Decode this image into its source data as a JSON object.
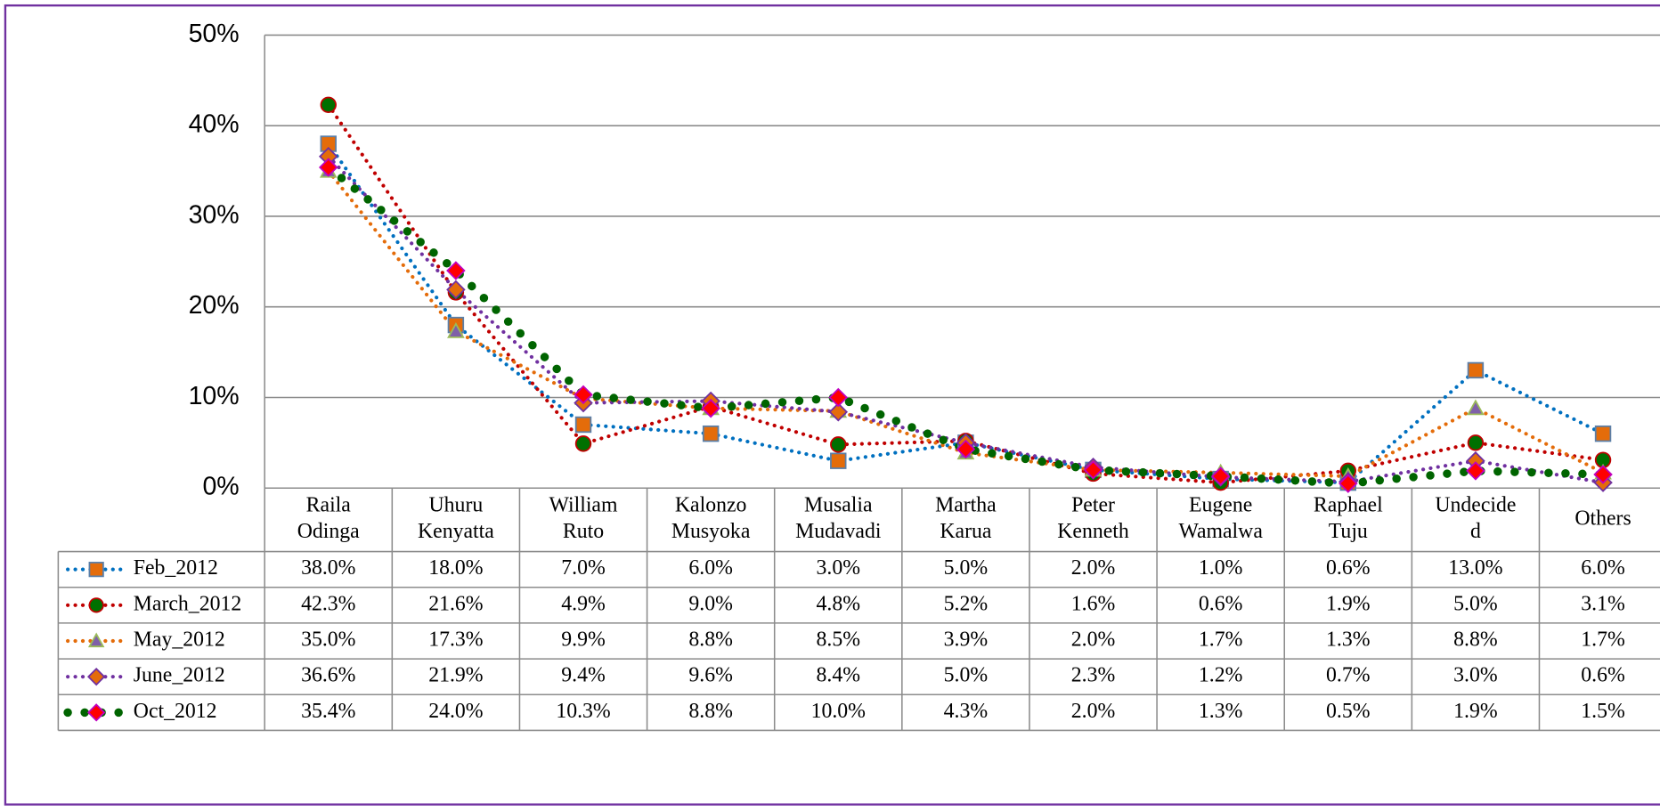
{
  "chart_data": {
    "type": "line",
    "categories": [
      [
        "Raila",
        "Odinga"
      ],
      [
        "Uhuru",
        "Kenyatta"
      ],
      [
        "William",
        "Ruto"
      ],
      [
        "Kalonzo",
        "Musyoka"
      ],
      [
        "Musalia",
        "Mudavadi"
      ],
      [
        "Martha",
        "Karua"
      ],
      [
        "Peter",
        "Kenneth"
      ],
      [
        "Eugene",
        "Wamalwa"
      ],
      [
        "Raphael",
        "Tuju"
      ],
      [
        "Undecide",
        "d"
      ],
      [
        "Others"
      ]
    ],
    "ylim": [
      0,
      50
    ],
    "yticks": [
      {
        "value": 0,
        "label": "0%"
      },
      {
        "value": 10,
        "label": "10%"
      },
      {
        "value": 20,
        "label": "20%"
      },
      {
        "value": 30,
        "label": "30%"
      },
      {
        "value": 40,
        "label": "40%"
      },
      {
        "value": 50,
        "label": "50%"
      }
    ],
    "grid": true,
    "series": [
      {
        "name": "Feb_2012",
        "color": "#0070c0",
        "marker": "square",
        "marker_color": "#e46c0a",
        "marker_stroke": "#5b7fa8",
        "values": [
          38,
          18,
          7,
          6,
          3,
          5,
          2,
          1,
          0.6,
          13,
          6
        ],
        "value_labels": [
          "38.0%",
          "18.0%",
          "7.0%",
          "6.0%",
          "3.0%",
          "5.0%",
          "2.0%",
          "1.0%",
          "0.6%",
          "13.0%",
          "6.0%"
        ]
      },
      {
        "name": "March_2012",
        "color": "#c00000",
        "marker": "circle",
        "marker_color": "#007000",
        "marker_stroke": "#c00000",
        "values": [
          42.3,
          21.6,
          4.9,
          9,
          4.8,
          5.2,
          1.6,
          0.6,
          1.9,
          5,
          3.1
        ],
        "value_labels": [
          "42.3%",
          "21.6%",
          "4.9%",
          "9.0%",
          "4.8%",
          "5.2%",
          "1.6%",
          "0.6%",
          "1.9%",
          "5.0%",
          "3.1%"
        ]
      },
      {
        "name": "May_2012",
        "color": "#e46c0a",
        "marker": "triangle",
        "marker_color": "#7f60a8",
        "marker_stroke": "#9bbb59",
        "values": [
          35,
          17.3,
          9.9,
          8.8,
          8.5,
          3.9,
          2,
          1.7,
          1.3,
          8.8,
          1.7
        ],
        "value_labels": [
          "35.0%",
          "17.3%",
          "9.9%",
          "8.8%",
          "8.5%",
          "3.9%",
          "2.0%",
          "1.7%",
          "1.3%",
          "8.8%",
          "1.7%"
        ]
      },
      {
        "name": "June_2012",
        "color": "#7030a0",
        "marker": "diamond",
        "marker_color": "#e46c0a",
        "marker_stroke": "#7030a0",
        "values": [
          36.6,
          21.9,
          9.4,
          9.6,
          8.4,
          5,
          2.3,
          1.2,
          0.7,
          3,
          0.6
        ],
        "value_labels": [
          "36.6%",
          "21.9%",
          "9.4%",
          "9.6%",
          "8.4%",
          "5.0%",
          "2.3%",
          "1.2%",
          "0.7%",
          "3.0%",
          "0.6%"
        ]
      },
      {
        "name": "Oct_2012",
        "color": "#006400",
        "marker": "diamond",
        "marker_color": "#ff0000",
        "marker_stroke": "#c000c0",
        "thick": true,
        "values": [
          35.4,
          24,
          10.3,
          8.8,
          10,
          4.3,
          2,
          1.3,
          0.5,
          1.9,
          1.5
        ],
        "value_labels": [
          "35.4%",
          "24.0%",
          "10.3%",
          "8.8%",
          "10.0%",
          "4.3%",
          "2.0%",
          "1.3%",
          "0.5%",
          "1.9%",
          "1.5%"
        ]
      }
    ]
  }
}
